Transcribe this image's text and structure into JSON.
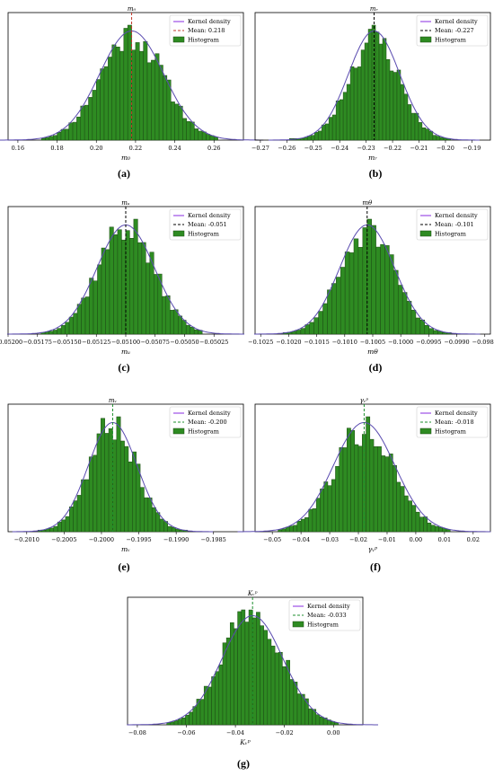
{
  "colors": {
    "bar": "#2e8b22",
    "bar_edge": "#1c4a14",
    "kde": "#5a4bb0",
    "kde_legend": "#8a2be2",
    "mean_red": "#c0392b",
    "mean_black": "#000000",
    "mean_green": "#1e8f2e"
  },
  "chart_data": [
    {
      "panel": "a",
      "type": "bar",
      "caption": "(a)",
      "title": "m₀",
      "xlabel": "m₀",
      "xlim": [
        0.155,
        0.275
      ],
      "ticks": [
        0.16,
        0.18,
        0.2,
        0.22,
        0.24,
        0.26
      ],
      "tick_labels": [
        "0.16",
        "0.18",
        "0.20",
        "0.22",
        "0.24",
        "0.26"
      ],
      "mean": 0.218,
      "mean_style": "red",
      "legend": {
        "kde": "Kernel density",
        "mean": "Mean: 0.218",
        "hist": "Histogram"
      },
      "hist": {
        "start": 0.172,
        "end": 0.262,
        "mean": 0.218,
        "sd": 0.016,
        "n": 45,
        "seed": 11
      }
    },
    {
      "panel": "b",
      "type": "bar",
      "caption": "(b)",
      "title": "mᵣ",
      "xlabel": "mᵣ",
      "xlim": [
        -0.272,
        -0.183
      ],
      "ticks": [
        -0.27,
        -0.26,
        -0.25,
        -0.24,
        -0.23,
        -0.22,
        -0.21,
        -0.2,
        -0.19
      ],
      "tick_labels": [
        "−0.27",
        "−0.26",
        "−0.25",
        "−0.24",
        "−0.23",
        "−0.22",
        "−0.21",
        "−0.20",
        "−0.19"
      ],
      "mean": -0.227,
      "mean_style": "black",
      "legend": {
        "kde": "Kernel density",
        "mean": "Mean: -0.227",
        "hist": "Histogram"
      },
      "hist": {
        "start": -0.259,
        "end": -0.198,
        "mean": -0.227,
        "sd": 0.0095,
        "n": 45,
        "seed": 23
      }
    },
    {
      "panel": "c",
      "type": "bar",
      "caption": "(c)",
      "title": "mᵤ",
      "xlabel": "mᵤ",
      "xlim": [
        -0.052,
        -0.05
      ],
      "ticks": [
        -0.052,
        -0.05175,
        -0.0515,
        -0.05125,
        -0.051,
        -0.05075,
        -0.0505,
        -0.05025
      ],
      "tick_labels": [
        "−0.05200",
        "−0.05175",
        "−0.05150",
        "−0.05125",
        "−0.05100",
        "−0.05075",
        "−0.05050",
        "−0.05025"
      ],
      "mean": -0.051,
      "mean_style": "black",
      "legend": {
        "kde": "Kernel density",
        "mean": "Mean: -0.051",
        "hist": "Histogram"
      },
      "hist": {
        "start": -0.05172,
        "end": -0.05035,
        "mean": -0.051,
        "sd": 0.00024,
        "n": 40,
        "seed": 37
      }
    },
    {
      "panel": "d",
      "type": "bar",
      "caption": "(d)",
      "title": "mθ",
      "xlabel": "mθ",
      "xlim": [
        -0.1026,
        -0.0984
      ],
      "ticks": [
        -0.1025,
        -0.102,
        -0.1015,
        -0.101,
        -0.1005,
        -0.1,
        -0.0995,
        -0.099,
        -0.0985
      ],
      "tick_labels": [
        "−0.1025",
        "−0.1020",
        "−0.1015",
        "−0.1010",
        "−0.1005",
        "−0.1000",
        "−0.0995",
        "−0.0990",
        "−0.0985"
      ],
      "mean": -0.1006,
      "mean_style": "black",
      "legend": {
        "kde": "Kernel density",
        "mean": "Mean: -0.101",
        "hist": "Histogram"
      },
      "hist": {
        "start": -0.1021,
        "end": -0.0991,
        "mean": -0.1006,
        "sd": 0.00048,
        "n": 38,
        "seed": 51
      }
    },
    {
      "panel": "e",
      "type": "bar",
      "caption": "(e)",
      "title": "mᵥ",
      "xlabel": "mᵥ",
      "xlim": [
        -0.20125,
        -0.1981
      ],
      "ticks": [
        -0.201,
        -0.2005,
        -0.2,
        -0.1995,
        -0.199,
        -0.1985
      ],
      "tick_labels": [
        "−0.2010",
        "−0.2005",
        "−0.2000",
        "−0.1995",
        "−0.1990",
        "−0.1985"
      ],
      "mean": -0.19985,
      "mean_style": "green",
      "legend": {
        "kde": "Kernel density",
        "mean": "Mean: -0.200",
        "hist": "Histogram"
      },
      "hist": {
        "start": -0.20085,
        "end": -0.19885,
        "mean": -0.19985,
        "sd": 0.00032,
        "n": 38,
        "seed": 67
      }
    },
    {
      "panel": "f",
      "type": "bar",
      "caption": "(f)",
      "title": "γᵥᵖ",
      "xlabel": "γᵥᵖ",
      "xlim": [
        -0.056,
        0.026
      ],
      "ticks": [
        -0.05,
        -0.04,
        -0.03,
        -0.02,
        -0.01,
        0.0,
        0.01,
        0.02
      ],
      "tick_labels": [
        "−0.05",
        "−0.04",
        "−0.03",
        "−0.02",
        "−0.01",
        "0.00",
        "0.01",
        "0.02"
      ],
      "mean": -0.018,
      "mean_style": "green",
      "legend": {
        "kde": "Kernel density",
        "mean": "Mean: -0.018",
        "hist": "Histogram"
      },
      "hist": {
        "start": -0.048,
        "end": 0.012,
        "mean": -0.018,
        "sd": 0.0105,
        "n": 45,
        "seed": 79
      }
    },
    {
      "panel": "g",
      "type": "bar",
      "caption": "(g)",
      "title": "Kᵥᵖ",
      "xlabel": "Kᵥᵖ",
      "xlim": [
        -0.084,
        0.012
      ],
      "ticks": [
        -0.08,
        -0.06,
        -0.04,
        -0.02,
        0.0
      ],
      "tick_labels": [
        "−0.08",
        "−0.06",
        "−0.04",
        "−0.02",
        "0.00"
      ],
      "mean": -0.033,
      "mean_style": "green",
      "legend": {
        "kde": "Kernel density",
        "mean": "Mean: -0.033",
        "hist": "Histogram"
      },
      "hist": {
        "start": -0.068,
        "end": 0.002,
        "mean": -0.033,
        "sd": 0.0122,
        "n": 46,
        "seed": 97
      }
    }
  ]
}
